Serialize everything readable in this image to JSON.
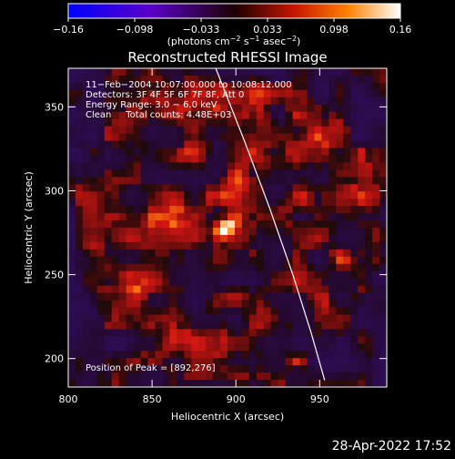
{
  "chart_data": {
    "type": "heatmap",
    "title": "Reconstructed RHESSI Image",
    "xlabel": "Heliocentric X (arcsec)",
    "ylabel": "Heliocentric Y (arcsec)",
    "xlim": [
      800,
      990
    ],
    "ylim": [
      183,
      373
    ],
    "xticks": [
      800,
      850,
      900,
      950
    ],
    "yticks": [
      200,
      250,
      300,
      350
    ],
    "colorbar": {
      "range": [
        -0.16,
        0.16
      ],
      "ticks": [
        "−0.16",
        "−0.098",
        "−0.033",
        "0.033",
        "0.098",
        "0.16"
      ],
      "units_prefix": "(photons cm",
      "units_exp1": "−2",
      "units_mid": " s",
      "units_exp2": "−1",
      "units_mid2": " asec",
      "units_exp3": "−2",
      "units_suffix": ")"
    },
    "annotations": {
      "time": "11−Feb−2004 10:07:00.000 to 10:08:12.000",
      "detectors": "Detectors: 3F 4F 5F 6F 7F 8F, Att 0",
      "energy": "Energy Range: 3.0 − 6.0 keV",
      "method": "Clean     Total counts: 4.48E+03",
      "peak": "Position of Peak = [892,276]"
    },
    "peak": {
      "x": 892,
      "y": 276,
      "value": 0.16
    },
    "limb_curve": [
      [
        888,
        373
      ],
      [
        905,
        330
      ],
      [
        920,
        290
      ],
      [
        934,
        250
      ],
      [
        945,
        215
      ],
      [
        953,
        187
      ]
    ],
    "colors": {
      "background": "#000000",
      "limb": "#ffffff"
    }
  },
  "footer": {
    "timestamp": "28-Apr-2022 17:52"
  }
}
